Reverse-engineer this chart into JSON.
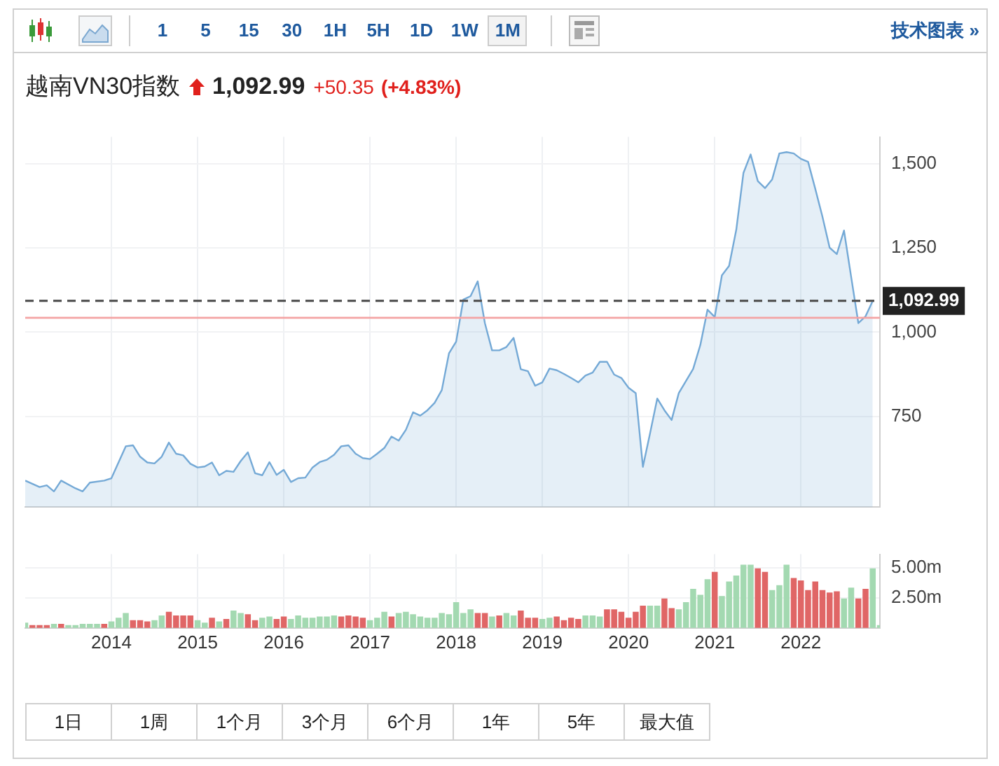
{
  "chart_data": [
    {
      "type": "area",
      "title": "越南VN30指数",
      "annotations": [
        "1,092.99",
        "+50.35",
        "(+4.83%)"
      ],
      "series": [
        {
          "color": "#74a9d6",
          "x": [
            "2013-01",
            "2013-03",
            "2013-04",
            "2013-05",
            "2013-06",
            "2013-08",
            "2013-09",
            "2013-10",
            "2013-12",
            "2014-01",
            "2014-03",
            "2014-04",
            "2014-05",
            "2014-06",
            "2014-07",
            "2014-08",
            "2014-09",
            "2014-10",
            "2014-11",
            "2014-12",
            "2015-01",
            "2015-02",
            "2015-03",
            "2015-04",
            "2015-05",
            "2015-06",
            "2015-07",
            "2015-08",
            "2015-09",
            "2015-10",
            "2015-11",
            "2015-12",
            "2016-01",
            "2016-02",
            "2016-03",
            "2016-04",
            "2016-05",
            "2016-06",
            "2016-07",
            "2016-08",
            "2016-09",
            "2016-10",
            "2016-11",
            "2016-12",
            "2017-01",
            "2017-02",
            "2017-03",
            "2017-04",
            "2017-05",
            "2017-06",
            "2017-07",
            "2017-08",
            "2017-09",
            "2017-10",
            "2017-11",
            "2017-12",
            "2018-01",
            "2018-02",
            "2018-03",
            "2018-04",
            "2018-05",
            "2018-06",
            "2018-07",
            "2018-08",
            "2018-09",
            "2018-10",
            "2018-11",
            "2018-12",
            "2019-01",
            "2019-02",
            "2019-03",
            "2019-04",
            "2019-05",
            "2019-06",
            "2019-07",
            "2019-08",
            "2019-09",
            "2019-10",
            "2019-11",
            "2019-12",
            "2020-01",
            "2020-02",
            "2020-03",
            "2020-04",
            "2020-05",
            "2020-06",
            "2020-07",
            "2020-08",
            "2020-09",
            "2020-10",
            "2020-11",
            "2020-12",
            "2021-01",
            "2021-02",
            "2021-03",
            "2021-04",
            "2021-05",
            "2021-06",
            "2021-07",
            "2021-08",
            "2021-09",
            "2021-10",
            "2021-11",
            "2021-12",
            "2022-01",
            "2022-02",
            "2022-03",
            "2022-04",
            "2022-05",
            "2022-06",
            "2022-07",
            "2022-08",
            "2022-09",
            "2022-10",
            "2022-11"
          ],
          "values": [
            559,
            540,
            545,
            527,
            559,
            536,
            527,
            553,
            559,
            566,
            661,
            664,
            630,
            613,
            610,
            630,
            672,
            639,
            634,
            609,
            598,
            601,
            613,
            575,
            588,
            585,
            617,
            643,
            581,
            575,
            614,
            576,
            591,
            555,
            566,
            568,
            598,
            614,
            621,
            636,
            661,
            664,
            639,
            626,
            623,
            639,
            656,
            690,
            678,
            710,
            762,
            752,
            768,
            790,
            828,
            937,
            972,
            1097,
            1107,
            1151,
            1027,
            946,
            946,
            956,
            983,
            890,
            884,
            841,
            851,
            892,
            887,
            876,
            864,
            851,
            871,
            880,
            912,
            912,
            874,
            864,
            835,
            819,
            600,
            700,
            803,
            768,
            739,
            819,
            855,
            891,
            962,
            1067,
            1045,
            1169,
            1197,
            1304,
            1473,
            1528,
            1449,
            1428,
            1454,
            1531,
            1535,
            1531,
            1515,
            1506,
            1426,
            1343,
            1251,
            1232,
            1302,
            1164,
            1027,
            1047,
            1093
          ]
        }
      ],
      "xlim": [
        "2013-01",
        "2022-12"
      ],
      "xticks": [
        "2014",
        "2015",
        "2016",
        "2017",
        "2018",
        "2019",
        "2020",
        "2021",
        "2022"
      ],
      "ylim": [
        480,
        1580
      ],
      "yticks": [
        {
          "value": 750,
          "label": "750"
        },
        {
          "value": 1000,
          "label": "1,000"
        },
        {
          "value": 1250,
          "label": "1,250"
        },
        {
          "value": 1500,
          "label": "1,500"
        }
      ],
      "ref_lines": [
        {
          "axis": "y",
          "value": 1092.99,
          "label": "1,092.99",
          "color": "#555555",
          "line_style": "dashed"
        },
        {
          "axis": "y",
          "value": 1042.64,
          "color": "#f4a3a3",
          "line_style": "solid"
        }
      ],
      "tick_labels": "y",
      "grid": true,
      "legend": false,
      "marker": "none"
    },
    {
      "type": "bar",
      "x": [
        "2013-01",
        "2013-02",
        "2013-03",
        "2013-04",
        "2013-05",
        "2013-06",
        "2013-07",
        "2013-08",
        "2013-09",
        "2013-10",
        "2013-11",
        "2013-12",
        "2014-01",
        "2014-02",
        "2014-03",
        "2014-04",
        "2014-05",
        "2014-06",
        "2014-07",
        "2014-08",
        "2014-09",
        "2014-10",
        "2014-11",
        "2014-12",
        "2015-01",
        "2015-02",
        "2015-03",
        "2015-04",
        "2015-05",
        "2015-06",
        "2015-07",
        "2015-08",
        "2015-09",
        "2015-10",
        "2015-11",
        "2015-12",
        "2016-01",
        "2016-02",
        "2016-03",
        "2016-04",
        "2016-05",
        "2016-06",
        "2016-07",
        "2016-08",
        "2016-09",
        "2016-10",
        "2016-11",
        "2016-12",
        "2017-01",
        "2017-02",
        "2017-03",
        "2017-04",
        "2017-05",
        "2017-06",
        "2017-07",
        "2017-08",
        "2017-09",
        "2017-10",
        "2017-11",
        "2017-12",
        "2018-01",
        "2018-02",
        "2018-03",
        "2018-04",
        "2018-05",
        "2018-06",
        "2018-07",
        "2018-08",
        "2018-09",
        "2018-10",
        "2018-11",
        "2018-12",
        "2019-01",
        "2019-02",
        "2019-03",
        "2019-04",
        "2019-05",
        "2019-06",
        "2019-07",
        "2019-08",
        "2019-09",
        "2019-10",
        "2019-11",
        "2019-12",
        "2020-01",
        "2020-02",
        "2020-03",
        "2020-04",
        "2020-05",
        "2020-06",
        "2020-07",
        "2020-08",
        "2020-09",
        "2020-10",
        "2020-11",
        "2020-12",
        "2021-01",
        "2021-02",
        "2021-03",
        "2021-04",
        "2021-05",
        "2021-06",
        "2021-07",
        "2021-08",
        "2021-09",
        "2021-10",
        "2021-11",
        "2021-12",
        "2022-01",
        "2022-02",
        "2022-03",
        "2022-04",
        "2022-05",
        "2022-06",
        "2022-07",
        "2022-08",
        "2022-09",
        "2022-10",
        "2022-11",
        "2022-12"
      ],
      "values": [
        0.4,
        0.2,
        0.2,
        0.2,
        0.3,
        0.3,
        0.2,
        0.2,
        0.3,
        0.3,
        0.3,
        0.3,
        0.5,
        0.8,
        1.2,
        0.6,
        0.6,
        0.5,
        0.6,
        1.0,
        1.3,
        1.0,
        1.0,
        1.0,
        0.6,
        0.4,
        0.8,
        0.5,
        0.7,
        1.4,
        1.2,
        1.1,
        0.6,
        0.8,
        0.9,
        0.7,
        0.9,
        0.7,
        1.0,
        0.8,
        0.8,
        0.9,
        0.9,
        1.0,
        0.9,
        1.0,
        0.9,
        0.8,
        0.6,
        0.8,
        1.3,
        0.9,
        1.2,
        1.3,
        1.1,
        0.9,
        0.8,
        0.8,
        1.2,
        1.1,
        2.1,
        1.2,
        1.5,
        1.2,
        1.2,
        0.9,
        1.0,
        1.2,
        1.0,
        1.4,
        0.8,
        0.8,
        0.7,
        0.8,
        0.9,
        0.6,
        0.8,
        0.7,
        1.0,
        1.0,
        0.9,
        1.5,
        1.5,
        1.3,
        0.8,
        1.3,
        1.8,
        1.8,
        1.8,
        2.4,
        1.6,
        1.5,
        2.1,
        3.2,
        2.7,
        4.0,
        4.6,
        2.6,
        3.8,
        4.3,
        5.2,
        5.2,
        4.9,
        4.6,
        3.1,
        3.5,
        5.2,
        4.1,
        3.9,
        3.1,
        3.8,
        3.1,
        2.9,
        3.0,
        2.4,
        3.3,
        2.4,
        3.2,
        4.9,
        0.2
      ],
      "colors": [
        "#a3d9b1",
        "#e06666",
        "#e06666",
        "#e06666",
        "#a3d9b1",
        "#e06666",
        "#a3d9b1",
        "#a3d9b1",
        "#a3d9b1",
        "#a3d9b1",
        "#a3d9b1",
        "#e06666",
        "#a3d9b1",
        "#a3d9b1",
        "#a3d9b1",
        "#e06666",
        "#e06666",
        "#e06666",
        "#a3d9b1",
        "#a3d9b1",
        "#e06666",
        "#e06666",
        "#e06666",
        "#e06666",
        "#a3d9b1",
        "#a3d9b1",
        "#e06666",
        "#a3d9b1",
        "#e06666",
        "#a3d9b1",
        "#a3d9b1",
        "#e06666",
        "#e06666",
        "#a3d9b1",
        "#a3d9b1",
        "#e06666",
        "#e06666",
        "#a3d9b1",
        "#a3d9b1",
        "#a3d9b1",
        "#a3d9b1",
        "#a3d9b1",
        "#a3d9b1",
        "#a3d9b1",
        "#e06666",
        "#e06666",
        "#e06666",
        "#e06666",
        "#a3d9b1",
        "#a3d9b1",
        "#a3d9b1",
        "#e06666",
        "#a3d9b1",
        "#a3d9b1",
        "#a3d9b1",
        "#a3d9b1",
        "#a3d9b1",
        "#a3d9b1",
        "#a3d9b1",
        "#a3d9b1",
        "#a3d9b1",
        "#a3d9b1",
        "#a3d9b1",
        "#e06666",
        "#e06666",
        "#a3d9b1",
        "#e06666",
        "#a3d9b1",
        "#a3d9b1",
        "#e06666",
        "#e06666",
        "#e06666",
        "#a3d9b1",
        "#a3d9b1",
        "#e06666",
        "#e06666",
        "#e06666",
        "#e06666",
        "#a3d9b1",
        "#a3d9b1",
        "#a3d9b1",
        "#e06666",
        "#e06666",
        "#e06666",
        "#e06666",
        "#e06666",
        "#e06666",
        "#a3d9b1",
        "#a3d9b1",
        "#e06666",
        "#e06666",
        "#a3d9b1",
        "#a3d9b1",
        "#a3d9b1",
        "#a3d9b1",
        "#a3d9b1",
        "#e06666",
        "#a3d9b1",
        "#a3d9b1",
        "#a3d9b1",
        "#a3d9b1",
        "#a3d9b1",
        "#e06666",
        "#e06666",
        "#a3d9b1",
        "#a3d9b1",
        "#a3d9b1",
        "#e06666",
        "#e06666",
        "#e06666",
        "#e06666",
        "#e06666",
        "#e06666",
        "#e06666",
        "#a3d9b1",
        "#a3d9b1",
        "#e06666",
        "#e06666",
        "#a3d9b1",
        "#a3d9b1"
      ],
      "xlim": [
        "2013-01",
        "2022-12"
      ],
      "xticks": [
        "2014",
        "2015",
        "2016",
        "2017",
        "2018",
        "2019",
        "2020",
        "2021",
        "2022"
      ],
      "ylim": [
        0,
        6.1
      ],
      "yticks": [
        {
          "value": 2.5,
          "label": "2.50m"
        },
        {
          "value": 5,
          "label": "5.00m"
        }
      ],
      "grid": true,
      "legend": false
    },
    {
      "type": "other",
      "annotations": [
        "1",
        "5",
        "15",
        "30",
        "1H",
        "5H",
        "1D",
        "1W",
        "1M",
        "技术图表 »",
        "1日",
        "1周",
        "1个月",
        "3个月",
        "6个月",
        "1年",
        "5年",
        "最大值"
      ]
    }
  ]
}
